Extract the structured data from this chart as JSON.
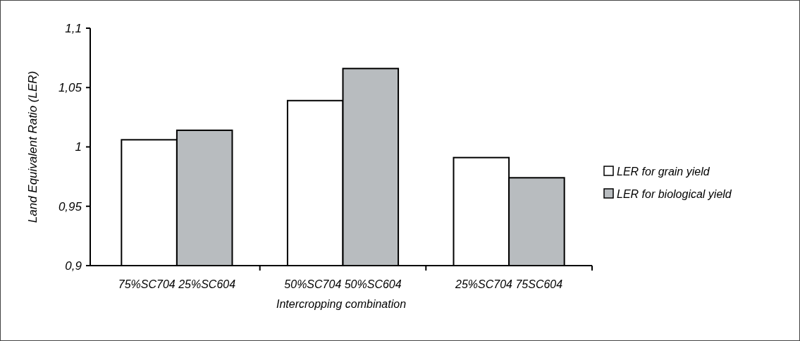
{
  "chart_data": {
    "type": "bar",
    "xlabel": "Intercropping combination",
    "ylabel": "Land Equivalent Ratio (LER)",
    "categories": [
      "75%SC704 25%SC604",
      "50%SC704 50%SC604",
      "25%SC704 75SC604"
    ],
    "series": [
      {
        "name": "LER for grain yield",
        "color": "#ffffff",
        "values": [
          1.006,
          1.039,
          0.991
        ]
      },
      {
        "name": "LER for biological yield",
        "color": "#b8bcbf",
        "values": [
          1.014,
          1.066,
          0.974
        ]
      }
    ],
    "ylim": [
      0.9,
      1.1
    ],
    "yticks": [
      {
        "value": 0.9,
        "label": "0,9"
      },
      {
        "value": 0.95,
        "label": "0,95"
      },
      {
        "value": 1,
        "label": "1"
      },
      {
        "value": 1.05,
        "label": "1,05"
      },
      {
        "value": 1.1,
        "label": "1,1"
      }
    ],
    "grid": false,
    "legend": "right"
  }
}
